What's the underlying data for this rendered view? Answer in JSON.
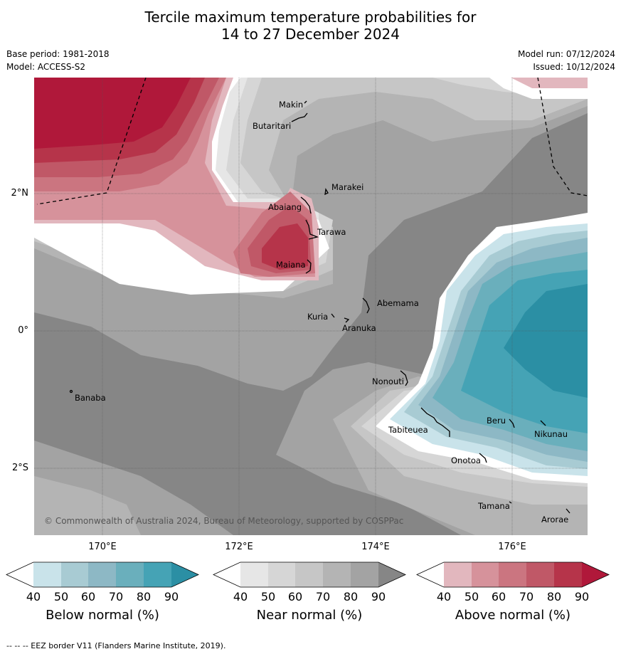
{
  "title": {
    "line1": "Tercile maximum temperature probabilities for",
    "line2": "14 to 27 December 2024"
  },
  "meta": {
    "base_period": "Base period: 1981-2018",
    "model": "Model: ACCESS-S2",
    "model_run": "Model run: 07/12/2024",
    "issued": "Issued: 10/12/2024"
  },
  "map": {
    "lat_labels": [
      "2°N",
      "0°",
      "2°S"
    ],
    "lon_labels": [
      "170°E",
      "172°E",
      "174°E",
      "176°E"
    ],
    "places": [
      "Makin",
      "Butaritari",
      "Marakei",
      "Abaiang",
      "Tarawa",
      "Maiana",
      "Abemama",
      "Kuria",
      "Aranuka",
      "Banaba",
      "Nonouti",
      "Tabiteuea",
      "Beru",
      "Nikunau",
      "Onotoa",
      "Tamana",
      "Arorae"
    ],
    "copyright": "© Commonwealth of Australia 2024, Bureau of Meteorology, supported by COSPPac"
  },
  "colorbars": [
    {
      "label": "Below normal (%)",
      "ticks": [
        "40",
        "50",
        "60",
        "70",
        "80",
        "90"
      ],
      "colors": [
        "#ffffff",
        "#c9e3ea",
        "#a8cbd3",
        "#8db8c5",
        "#6aafbc",
        "#45a3b5",
        "#2b8fa4"
      ]
    },
    {
      "label": "Near normal (%)",
      "ticks": [
        "40",
        "50",
        "60",
        "70",
        "80",
        "90"
      ],
      "colors": [
        "#ffffff",
        "#e6e6e6",
        "#d6d6d6",
        "#c6c6c6",
        "#b4b4b4",
        "#a3a3a3",
        "#868686"
      ]
    },
    {
      "label": "Above normal (%)",
      "ticks": [
        "40",
        "50",
        "60",
        "70",
        "80",
        "90"
      ],
      "colors": [
        "#ffffff",
        "#e2b7be",
        "#d6929b",
        "#cb7580",
        "#c05867",
        "#b6344a",
        "#b0183a"
      ]
    }
  ],
  "footer": "--  --  -- EEZ border V11 (Flanders Marine Institute, 2019)."
}
